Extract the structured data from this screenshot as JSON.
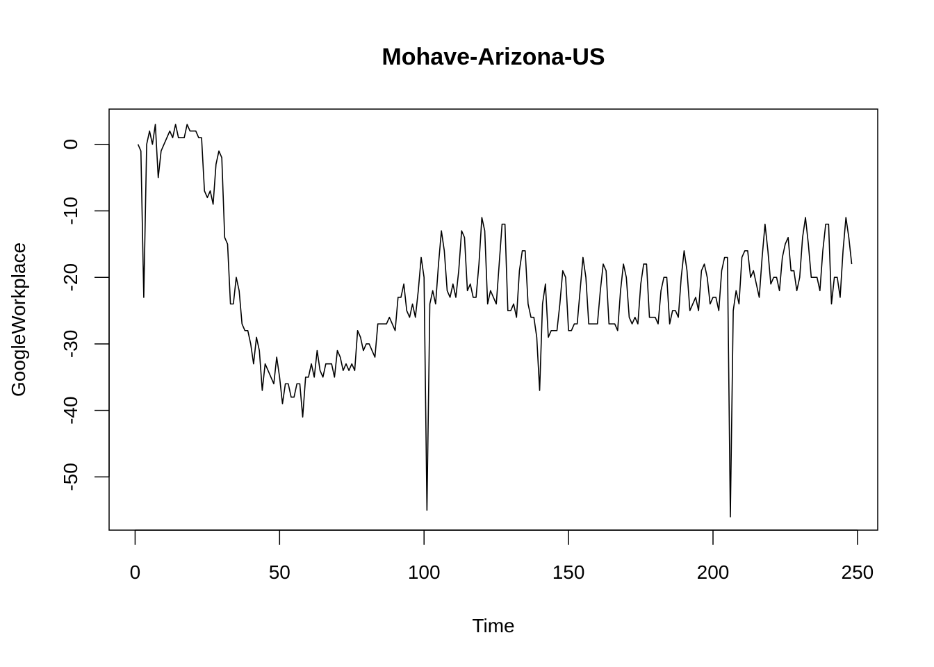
{
  "chart_data": {
    "type": "line",
    "title": "Mohave-Arizona-US",
    "xlabel": "Time",
    "ylabel": "GoogleWorkplace",
    "xlim": [
      -9,
      257
    ],
    "ylim": [
      -58,
      5.3
    ],
    "xticks": [
      0,
      50,
      100,
      150,
      200,
      250
    ],
    "yticks": [
      0,
      -10,
      -20,
      -30,
      -40,
      -50
    ],
    "grid": false,
    "series": [
      {
        "color": "#000000",
        "x_start": 1,
        "values": [
          0,
          -1,
          -23,
          0,
          2,
          0,
          3,
          -5,
          -1,
          0,
          1,
          2,
          1,
          3,
          1,
          1,
          1,
          3,
          2,
          2,
          2,
          1,
          1,
          -7,
          -8,
          -7,
          -9,
          -3,
          -1,
          -2,
          -14,
          -15,
          -24,
          -24,
          -20,
          -22,
          -27,
          -28,
          -28,
          -30,
          -33,
          -29,
          -31,
          -37,
          -33,
          -34,
          -35,
          -36,
          -32,
          -35,
          -39,
          -36,
          -36,
          -38,
          -38,
          -36,
          -36,
          -41,
          -35,
          -35,
          -33,
          -35,
          -31,
          -34,
          -35,
          -33,
          -33,
          -33,
          -35,
          -31,
          -32,
          -34,
          -33,
          -34,
          -33,
          -34,
          -28,
          -29,
          -31,
          -30,
          -30,
          -31,
          -32,
          -27,
          -27,
          -27,
          -27,
          -26,
          -27,
          -28,
          -23,
          -23,
          -21,
          -25,
          -26,
          -24,
          -26,
          -22,
          -17,
          -20,
          -55,
          -24,
          -22,
          -24,
          -18,
          -13,
          -16,
          -22,
          -23,
          -21,
          -23,
          -19,
          -13,
          -14,
          -22,
          -21,
          -23,
          -23,
          -18,
          -11,
          -13,
          -24,
          -22,
          -23,
          -24,
          -18,
          -12,
          -12,
          -25,
          -25,
          -24,
          -26,
          -19,
          -16,
          -16,
          -24,
          -26,
          -26,
          -29,
          -37,
          -24,
          -21,
          -29,
          -28,
          -28,
          -28,
          -24,
          -19,
          -20,
          -28,
          -28,
          -27,
          -27,
          -22,
          -17,
          -20,
          -27,
          -27,
          -27,
          -27,
          -22,
          -18,
          -19,
          -27,
          -27,
          -27,
          -28,
          -22,
          -18,
          -20,
          -26,
          -27,
          -26,
          -27,
          -21,
          -18,
          -18,
          -26,
          -26,
          -26,
          -27,
          -22,
          -20,
          -20,
          -27,
          -25,
          -25,
          -26,
          -20,
          -16,
          -19,
          -25,
          -24,
          -23,
          -25,
          -19,
          -18,
          -20,
          -24,
          -23,
          -23,
          -25,
          -19,
          -17,
          -17,
          -56,
          -25,
          -22,
          -24,
          -17,
          -16,
          -16,
          -20,
          -19,
          -21,
          -23,
          -17,
          -12,
          -16,
          -21,
          -20,
          -20,
          -22,
          -17,
          -15,
          -14,
          -19,
          -19,
          -22,
          -20,
          -14,
          -11,
          -15,
          -20,
          -20,
          -20,
          -22,
          -16,
          -12,
          -12,
          -24,
          -20,
          -20,
          -23,
          -16,
          -11,
          -14,
          -18
        ]
      }
    ]
  }
}
